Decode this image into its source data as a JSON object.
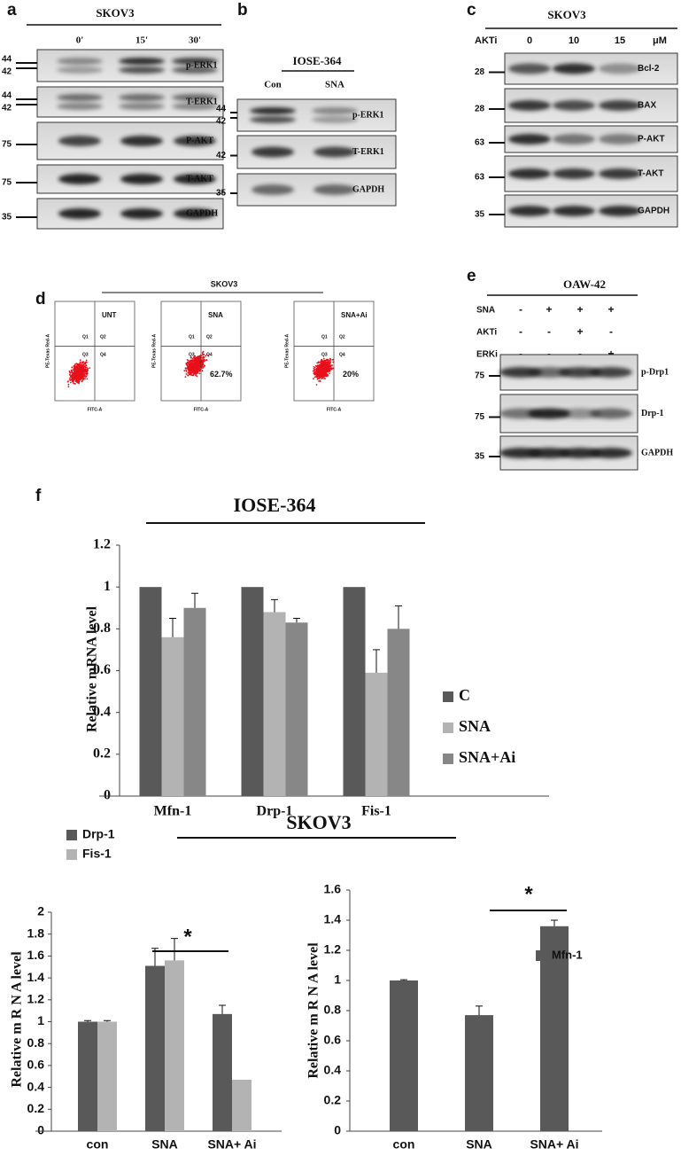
{
  "panels": {
    "a": {
      "label": "a",
      "cell": "SKOV3",
      "lanes": [
        "0'",
        "15'",
        "30'"
      ],
      "rows": [
        {
          "name": "p-ERK1",
          "markers": [
            44,
            42
          ]
        },
        {
          "name": "T-ERK1",
          "markers": [
            44,
            42
          ]
        },
        {
          "name": "P-AKT",
          "markers": [
            75
          ]
        },
        {
          "name": "T-AKT",
          "markers": [
            75
          ]
        },
        {
          "name": "GAPDH",
          "markers": [
            35
          ]
        }
      ]
    },
    "b": {
      "label": "b",
      "cell": "IOSE-364",
      "lanes": [
        "Con",
        "SNA"
      ],
      "rows": [
        {
          "name": "p-ERK1",
          "markers": [
            44,
            42
          ]
        },
        {
          "name": "T-ERK1",
          "markers": [
            42
          ]
        },
        {
          "name": "GAPDH",
          "markers": [
            35
          ]
        }
      ]
    },
    "c": {
      "label": "c",
      "cell": "SKOV3",
      "treatment": "AKTi",
      "lanes": [
        "0",
        "10",
        "15"
      ],
      "unit": "μM",
      "rows": [
        {
          "name": "Bcl-2",
          "markers": [
            28
          ]
        },
        {
          "name": "BAX",
          "markers": [
            28
          ]
        },
        {
          "name": "P-AKT",
          "markers": [
            63
          ]
        },
        {
          "name": "T-AKT",
          "markers": [
            63
          ]
        },
        {
          "name": "GAPDH",
          "markers": [
            35
          ]
        }
      ]
    },
    "d": {
      "label": "d",
      "cell": "SKOV3",
      "x_axis": "FITC-A",
      "y_axis": "PE-Texas Red-A",
      "quadrants": [
        "Q1",
        "Q2",
        "Q3",
        "Q4"
      ],
      "plots": [
        {
          "label": "UNT"
        },
        {
          "label": "SNA",
          "percent": "62.7%"
        },
        {
          "label": "SNA+Ai",
          "percent": "20%"
        }
      ]
    },
    "e": {
      "label": "e",
      "cell": "OAW-42",
      "treatments": [
        {
          "name": "SNA",
          "signs": [
            "-",
            "+",
            "+",
            "+"
          ]
        },
        {
          "name": "AKTi",
          "signs": [
            "-",
            "-",
            "+",
            "-"
          ]
        },
        {
          "name": "ERKi",
          "signs": [
            "-",
            "-",
            "-",
            "+"
          ]
        }
      ],
      "rows": [
        {
          "name": "p-Drp1",
          "markers": [
            75
          ]
        },
        {
          "name": "Drp-1",
          "markers": [
            75
          ]
        },
        {
          "name": "GAPDH",
          "markers": [
            35
          ]
        }
      ]
    },
    "f": {
      "label": "f"
    }
  },
  "chart_data": [
    {
      "type": "bar",
      "title": "IOSE-364",
      "y_label": "Relative mRNA level",
      "categories": [
        "Mfn-1",
        "Drp-1",
        "Fis-1"
      ],
      "series": [
        {
          "name": "C",
          "color": "#595959",
          "values": [
            1,
            1,
            1
          ]
        },
        {
          "name": "SNA",
          "color": "#b3b3b3",
          "values": [
            0.76,
            0.88,
            0.59
          ],
          "errors": [
            0.09,
            0.06,
            0.11
          ]
        },
        {
          "name": "SNA+Ai",
          "color": "#878787",
          "values": [
            0.9,
            0.83,
            0.8
          ],
          "errors": [
            0.07,
            0.02,
            0.11
          ]
        }
      ],
      "ylim": [
        0,
        1.2
      ],
      "yticks": [
        0,
        0.2,
        0.4,
        0.6,
        0.8,
        1,
        1.2
      ],
      "legend": "right"
    },
    {
      "type": "bar",
      "title": "SKOV3",
      "y_label": "Relative m R N A level",
      "annotation": "*",
      "categories": [
        "con",
        "SNA",
        "SNA+ Ai"
      ],
      "series": [
        {
          "name": "Drp-1",
          "color": "#595959",
          "values": [
            1.0,
            1.51,
            1.07
          ],
          "errors": [
            0.01,
            0.16,
            0.08
          ]
        },
        {
          "name": "Fis-1",
          "color": "#b3b3b3",
          "values": [
            1.0,
            1.56,
            0.47
          ],
          "errors": [
            0.01,
            0.2,
            null
          ]
        }
      ],
      "ylim": [
        0,
        2
      ],
      "yticks": [
        0,
        0.2,
        0.4,
        0.6,
        0.8,
        1,
        1.2,
        1.4,
        1.6,
        1.8,
        2
      ],
      "legend": "top left"
    },
    {
      "type": "bar",
      "y_label": "Relative m R N A level",
      "annotation": "*",
      "categories": [
        "con",
        "SNA",
        "SNA+ Ai"
      ],
      "series": [
        {
          "name": "Mfn-1",
          "color": "#595959",
          "values": [
            1.0,
            0.77,
            1.36
          ],
          "errors": [
            0.005,
            0.06,
            0.04
          ]
        }
      ],
      "ylim": [
        0,
        1.6
      ],
      "yticks": [
        0,
        0.2,
        0.4,
        0.6,
        0.8,
        1,
        1.2,
        1.4,
        1.6
      ],
      "legend": "right"
    }
  ]
}
